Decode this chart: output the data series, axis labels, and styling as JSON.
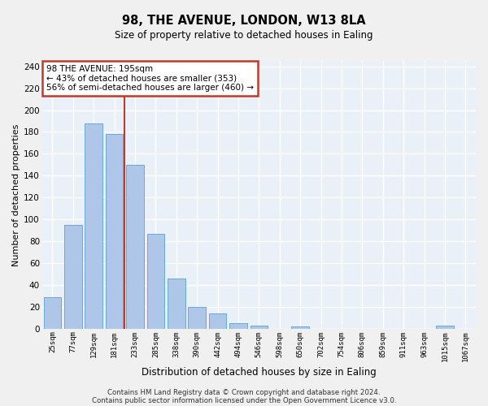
{
  "title": "98, THE AVENUE, LONDON, W13 8LA",
  "subtitle": "Size of property relative to detached houses in Ealing",
  "xlabel": "Distribution of detached houses by size in Ealing",
  "ylabel": "Number of detached properties",
  "categories": [
    "25sqm",
    "77sqm",
    "129sqm",
    "181sqm",
    "233sqm",
    "285sqm",
    "338sqm",
    "390sqm",
    "442sqm",
    "494sqm",
    "546sqm",
    "598sqm",
    "650sqm",
    "702sqm",
    "754sqm",
    "806sqm",
    "859sqm",
    "911sqm",
    "963sqm",
    "1015sqm",
    "1067sqm"
  ],
  "values": [
    29,
    95,
    188,
    178,
    150,
    87,
    46,
    20,
    14,
    5,
    3,
    0,
    2,
    0,
    0,
    0,
    0,
    0,
    0,
    3,
    0
  ],
  "bar_color": "#aec6e8",
  "bar_edge_color": "#5a9fd4",
  "annotation_line1": "98 THE AVENUE: 195sqm",
  "annotation_line2": "← 43% of detached houses are smaller (353)",
  "annotation_line3": "56% of semi-detached houses are larger (460) →",
  "vline_color": "#c0392b",
  "annotation_box_edge_color": "#c0392b",
  "bg_color": "#eaf0f8",
  "grid_color": "#ffffff",
  "footer_line1": "Contains HM Land Registry data © Crown copyright and database right 2024.",
  "footer_line2": "Contains public sector information licensed under the Open Government Licence v3.0.",
  "ylim": [
    0,
    245
  ],
  "yticks": [
    0,
    20,
    40,
    60,
    80,
    100,
    120,
    140,
    160,
    180,
    200,
    220,
    240
  ],
  "vline_pos": 3.5,
  "fig_bg": "#f0f0f0"
}
